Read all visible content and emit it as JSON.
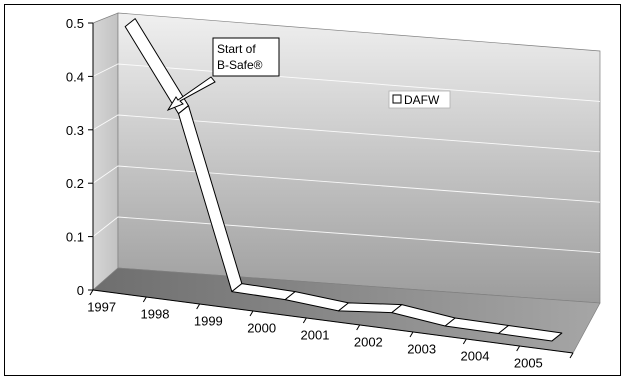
{
  "chart_data": {
    "type": "line",
    "style": "3d-ribbon",
    "categories": [
      "1997",
      "1998",
      "1999",
      "2000",
      "2001",
      "2002",
      "2003",
      "2004",
      "2005"
    ],
    "series": [
      {
        "name": "DAFW",
        "values": [
          0.49,
          0.34,
          0.02,
          0.018,
          0.01,
          0.02,
          0.008,
          0.007,
          0.006
        ]
      }
    ],
    "yticks": [
      "0",
      "0.1",
      "0.2",
      "0.3",
      "0.4",
      "0.5"
    ],
    "ylim": [
      0,
      0.5
    ],
    "grid": true,
    "legend_position": "top-right",
    "annotation": {
      "lines": [
        "Start of",
        "B-Safe®"
      ],
      "target_category": "1998"
    },
    "colors": {
      "ribbon": "#ffffff",
      "outline": "#000000",
      "wall_top": "#eeeeee",
      "wall_bottom": "#9a9a9a",
      "floor": "#888888"
    }
  }
}
